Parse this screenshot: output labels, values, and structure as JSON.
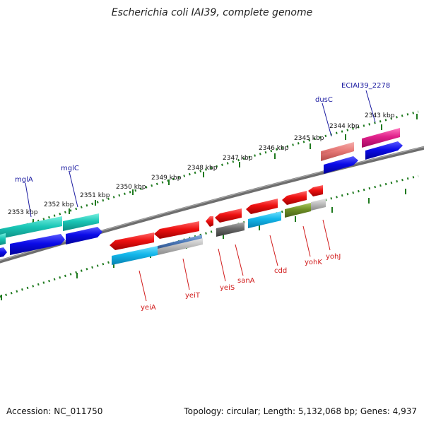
{
  "title": "Escherichia coli IAI39, complete genome",
  "footer": {
    "accession": "Accession: NC_011750",
    "info": "Topology: circular; Length: 5,132,068 bp; Genes: 4,937"
  },
  "kbp_labels": [
    "2353 kbp",
    "2352 kbp",
    "2351 kbp",
    "2350 kbp",
    "2349 kbp",
    "2348 kbp",
    "2347 kbp",
    "2346 kbp",
    "2345 kbp",
    "2344 kbp",
    "2343 kbp"
  ],
  "genes_top": [
    "mglA",
    "mglC",
    "dusC",
    "ECIAI39_2278"
  ],
  "genes_bottom": [
    "yeiA",
    "yeiT",
    "yeiS",
    "sanA",
    "cdd",
    "yohK",
    "yohJ"
  ],
  "colors": {
    "backbone": "#7a7a7a",
    "scale_ticks": "#1f7a1f",
    "gene_red": "#e81010",
    "cds_blue": "#0a0ae6",
    "cds_cyan": "#1ab8e8",
    "cds_teal": "#1ec8b8",
    "cds_grey": "#707070",
    "cds_olive": "#6e8f25",
    "cds_salmon": "#e87a78",
    "cds_pink": "#e0208a",
    "label_top": "#1a1aa0",
    "label_bottom": "#d11b1b"
  }
}
